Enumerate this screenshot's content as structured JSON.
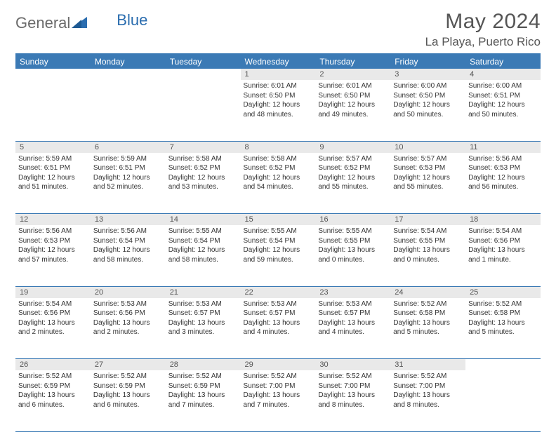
{
  "logo": {
    "part1": "General",
    "part2": "Blue"
  },
  "title": "May 2024",
  "location": "La Playa, Puerto Rico",
  "colors": {
    "header_bg": "#3b7ab5",
    "header_text": "#ffffff",
    "daynum_bg": "#e9e9e9",
    "text": "#333333",
    "logo_gray": "#6b6b6b",
    "logo_blue": "#2b6daf"
  },
  "day_headers": [
    "Sunday",
    "Monday",
    "Tuesday",
    "Wednesday",
    "Thursday",
    "Friday",
    "Saturday"
  ],
  "weeks": [
    [
      {
        "num": "",
        "sunrise": "",
        "sunset": "",
        "daylight": ""
      },
      {
        "num": "",
        "sunrise": "",
        "sunset": "",
        "daylight": ""
      },
      {
        "num": "",
        "sunrise": "",
        "sunset": "",
        "daylight": ""
      },
      {
        "num": "1",
        "sunrise": "Sunrise: 6:01 AM",
        "sunset": "Sunset: 6:50 PM",
        "daylight": "Daylight: 12 hours and 48 minutes."
      },
      {
        "num": "2",
        "sunrise": "Sunrise: 6:01 AM",
        "sunset": "Sunset: 6:50 PM",
        "daylight": "Daylight: 12 hours and 49 minutes."
      },
      {
        "num": "3",
        "sunrise": "Sunrise: 6:00 AM",
        "sunset": "Sunset: 6:50 PM",
        "daylight": "Daylight: 12 hours and 50 minutes."
      },
      {
        "num": "4",
        "sunrise": "Sunrise: 6:00 AM",
        "sunset": "Sunset: 6:51 PM",
        "daylight": "Daylight: 12 hours and 50 minutes."
      }
    ],
    [
      {
        "num": "5",
        "sunrise": "Sunrise: 5:59 AM",
        "sunset": "Sunset: 6:51 PM",
        "daylight": "Daylight: 12 hours and 51 minutes."
      },
      {
        "num": "6",
        "sunrise": "Sunrise: 5:59 AM",
        "sunset": "Sunset: 6:51 PM",
        "daylight": "Daylight: 12 hours and 52 minutes."
      },
      {
        "num": "7",
        "sunrise": "Sunrise: 5:58 AM",
        "sunset": "Sunset: 6:52 PM",
        "daylight": "Daylight: 12 hours and 53 minutes."
      },
      {
        "num": "8",
        "sunrise": "Sunrise: 5:58 AM",
        "sunset": "Sunset: 6:52 PM",
        "daylight": "Daylight: 12 hours and 54 minutes."
      },
      {
        "num": "9",
        "sunrise": "Sunrise: 5:57 AM",
        "sunset": "Sunset: 6:52 PM",
        "daylight": "Daylight: 12 hours and 55 minutes."
      },
      {
        "num": "10",
        "sunrise": "Sunrise: 5:57 AM",
        "sunset": "Sunset: 6:53 PM",
        "daylight": "Daylight: 12 hours and 55 minutes."
      },
      {
        "num": "11",
        "sunrise": "Sunrise: 5:56 AM",
        "sunset": "Sunset: 6:53 PM",
        "daylight": "Daylight: 12 hours and 56 minutes."
      }
    ],
    [
      {
        "num": "12",
        "sunrise": "Sunrise: 5:56 AM",
        "sunset": "Sunset: 6:53 PM",
        "daylight": "Daylight: 12 hours and 57 minutes."
      },
      {
        "num": "13",
        "sunrise": "Sunrise: 5:56 AM",
        "sunset": "Sunset: 6:54 PM",
        "daylight": "Daylight: 12 hours and 58 minutes."
      },
      {
        "num": "14",
        "sunrise": "Sunrise: 5:55 AM",
        "sunset": "Sunset: 6:54 PM",
        "daylight": "Daylight: 12 hours and 58 minutes."
      },
      {
        "num": "15",
        "sunrise": "Sunrise: 5:55 AM",
        "sunset": "Sunset: 6:54 PM",
        "daylight": "Daylight: 12 hours and 59 minutes."
      },
      {
        "num": "16",
        "sunrise": "Sunrise: 5:55 AM",
        "sunset": "Sunset: 6:55 PM",
        "daylight": "Daylight: 13 hours and 0 minutes."
      },
      {
        "num": "17",
        "sunrise": "Sunrise: 5:54 AM",
        "sunset": "Sunset: 6:55 PM",
        "daylight": "Daylight: 13 hours and 0 minutes."
      },
      {
        "num": "18",
        "sunrise": "Sunrise: 5:54 AM",
        "sunset": "Sunset: 6:56 PM",
        "daylight": "Daylight: 13 hours and 1 minute."
      }
    ],
    [
      {
        "num": "19",
        "sunrise": "Sunrise: 5:54 AM",
        "sunset": "Sunset: 6:56 PM",
        "daylight": "Daylight: 13 hours and 2 minutes."
      },
      {
        "num": "20",
        "sunrise": "Sunrise: 5:53 AM",
        "sunset": "Sunset: 6:56 PM",
        "daylight": "Daylight: 13 hours and 2 minutes."
      },
      {
        "num": "21",
        "sunrise": "Sunrise: 5:53 AM",
        "sunset": "Sunset: 6:57 PM",
        "daylight": "Daylight: 13 hours and 3 minutes."
      },
      {
        "num": "22",
        "sunrise": "Sunrise: 5:53 AM",
        "sunset": "Sunset: 6:57 PM",
        "daylight": "Daylight: 13 hours and 4 minutes."
      },
      {
        "num": "23",
        "sunrise": "Sunrise: 5:53 AM",
        "sunset": "Sunset: 6:57 PM",
        "daylight": "Daylight: 13 hours and 4 minutes."
      },
      {
        "num": "24",
        "sunrise": "Sunrise: 5:52 AM",
        "sunset": "Sunset: 6:58 PM",
        "daylight": "Daylight: 13 hours and 5 minutes."
      },
      {
        "num": "25",
        "sunrise": "Sunrise: 5:52 AM",
        "sunset": "Sunset: 6:58 PM",
        "daylight": "Daylight: 13 hours and 5 minutes."
      }
    ],
    [
      {
        "num": "26",
        "sunrise": "Sunrise: 5:52 AM",
        "sunset": "Sunset: 6:59 PM",
        "daylight": "Daylight: 13 hours and 6 minutes."
      },
      {
        "num": "27",
        "sunrise": "Sunrise: 5:52 AM",
        "sunset": "Sunset: 6:59 PM",
        "daylight": "Daylight: 13 hours and 6 minutes."
      },
      {
        "num": "28",
        "sunrise": "Sunrise: 5:52 AM",
        "sunset": "Sunset: 6:59 PM",
        "daylight": "Daylight: 13 hours and 7 minutes."
      },
      {
        "num": "29",
        "sunrise": "Sunrise: 5:52 AM",
        "sunset": "Sunset: 7:00 PM",
        "daylight": "Daylight: 13 hours and 7 minutes."
      },
      {
        "num": "30",
        "sunrise": "Sunrise: 5:52 AM",
        "sunset": "Sunset: 7:00 PM",
        "daylight": "Daylight: 13 hours and 8 minutes."
      },
      {
        "num": "31",
        "sunrise": "Sunrise: 5:52 AM",
        "sunset": "Sunset: 7:00 PM",
        "daylight": "Daylight: 13 hours and 8 minutes."
      },
      {
        "num": "",
        "sunrise": "",
        "sunset": "",
        "daylight": ""
      }
    ]
  ]
}
